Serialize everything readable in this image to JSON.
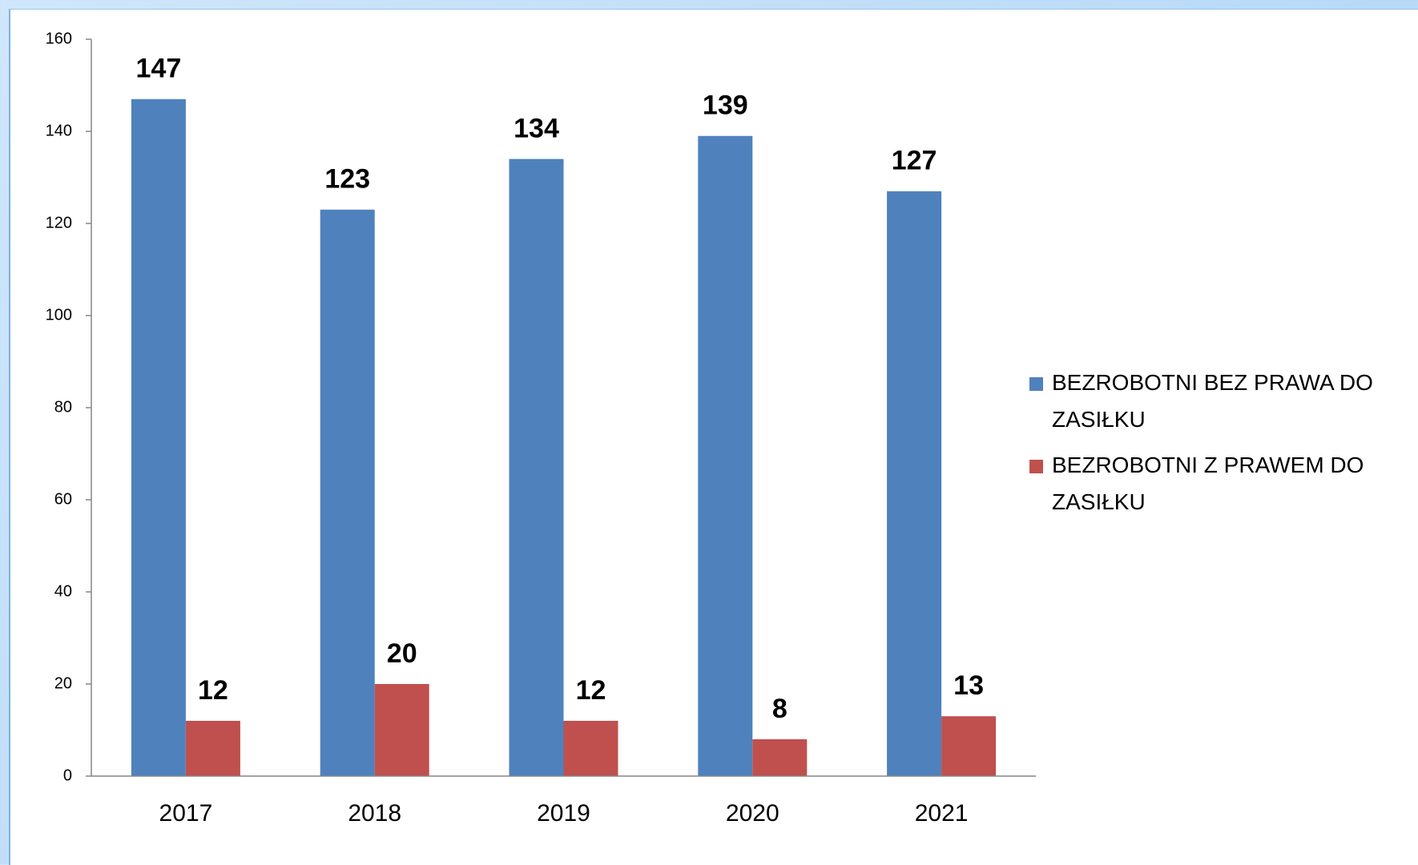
{
  "chart_data": {
    "type": "bar",
    "categories": [
      "2017",
      "2018",
      "2019",
      "2020",
      "2021"
    ],
    "series": [
      {
        "name": "BEZROBOTNI BEZ PRAWA DO ZASIŁKU",
        "color": "#4f81bd",
        "values": [
          147,
          123,
          134,
          139,
          127
        ]
      },
      {
        "name": "BEZROBOTNI Z PRAWEM DO ZASIŁKU",
        "color": "#c0504d",
        "values": [
          12,
          20,
          12,
          8,
          13
        ]
      }
    ],
    "ylim": [
      0,
      160
    ],
    "yticks": [
      0,
      20,
      40,
      60,
      80,
      100,
      120,
      140,
      160
    ],
    "legend": "right"
  }
}
